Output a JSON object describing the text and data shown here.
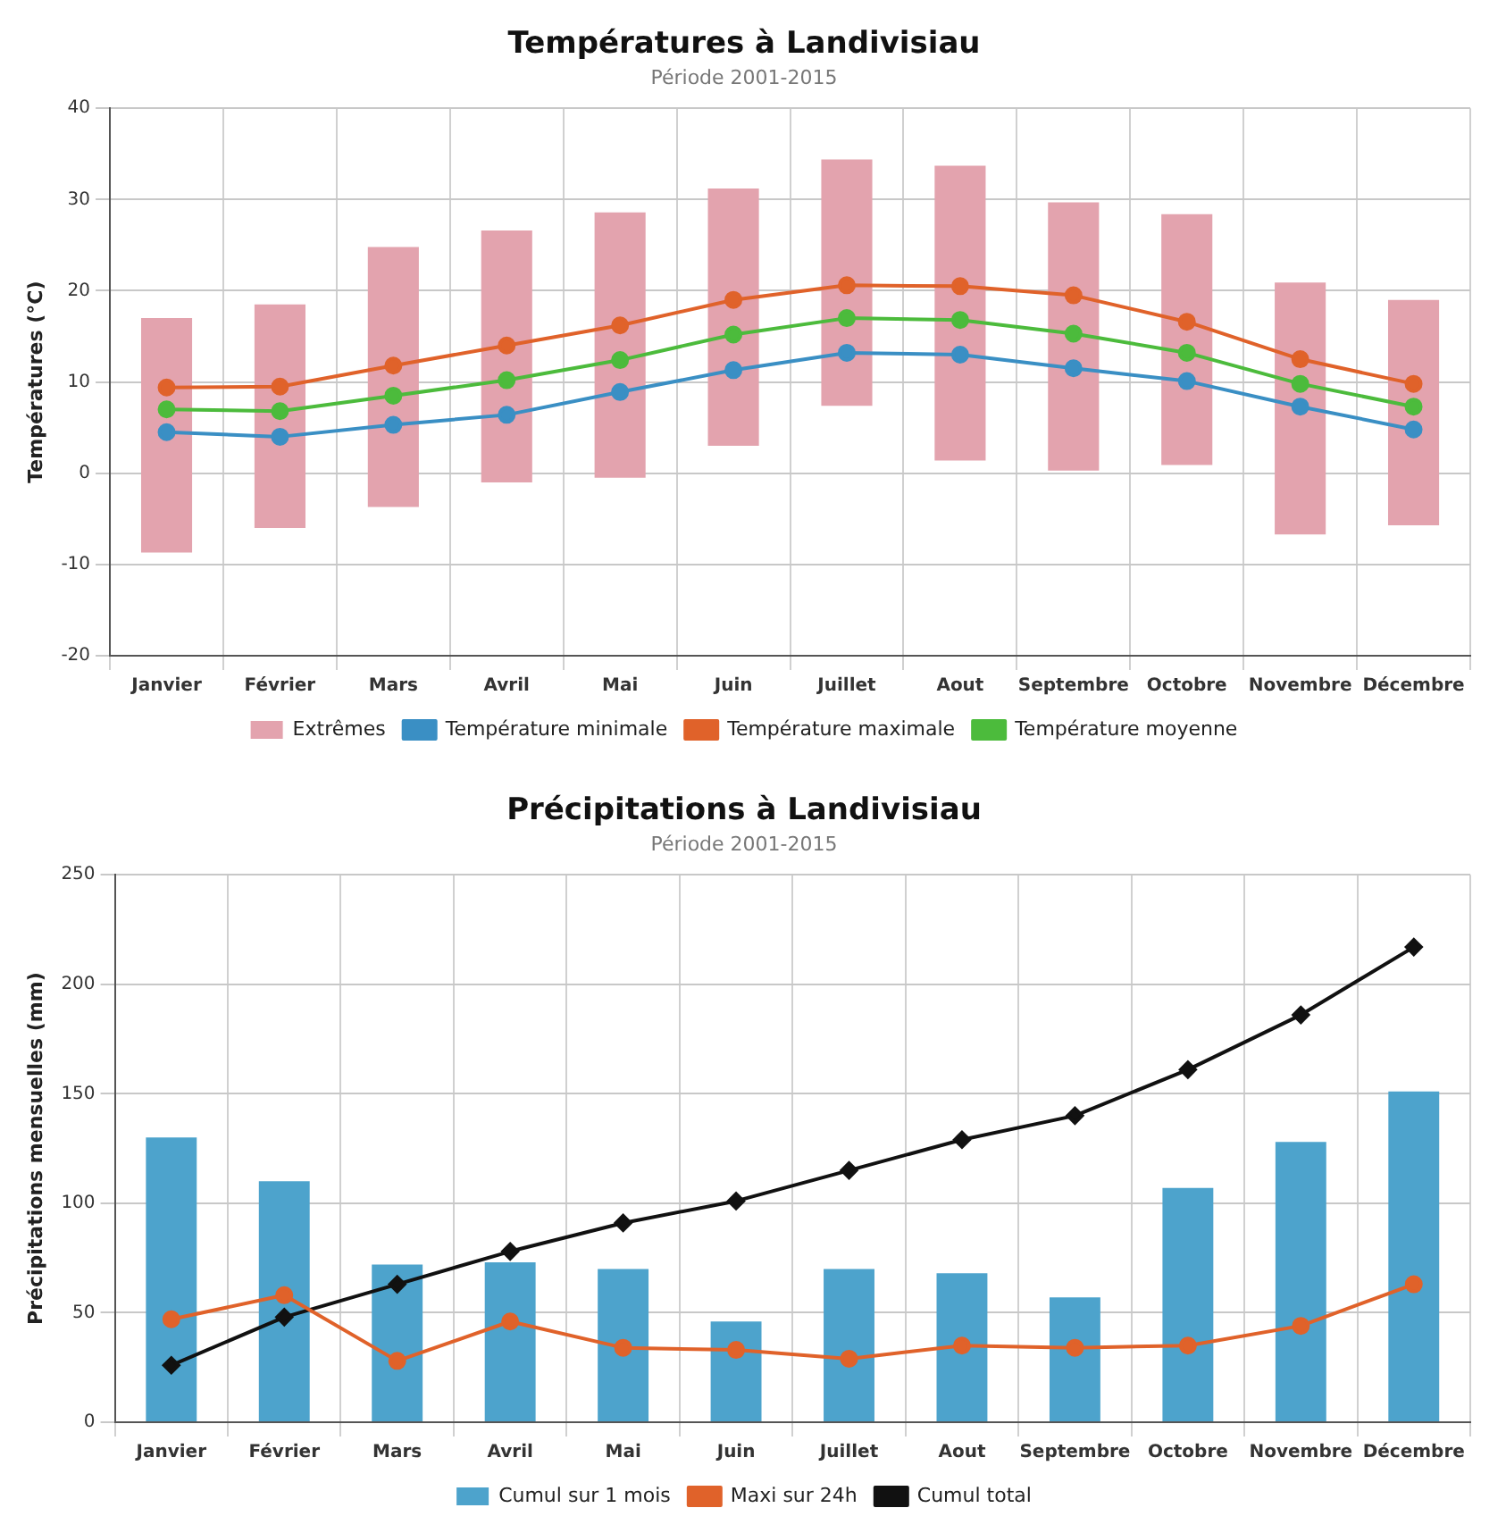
{
  "chart_data": [
    {
      "type": "bar",
      "title": "Températures à Landivisiau",
      "subtitle": "Période 2001-2015",
      "ylabel": "Températures (°C)",
      "categories": [
        "Janvier",
        "Février",
        "Mars",
        "Avril",
        "Mai",
        "Juin",
        "Juillet",
        "Aout",
        "Septembre",
        "Octobre",
        "Novembre",
        "Décembre"
      ],
      "ylim": [
        -20,
        40
      ],
      "yticks": [
        -20,
        -10,
        0,
        10,
        20,
        30,
        40
      ],
      "grid": true,
      "legend": "bottom",
      "marker": "circle",
      "series": [
        {
          "name": "Extrêmes",
          "color": "#e3a3ae",
          "base": [
            -8.7,
            -6,
            -3.7,
            -1,
            -0.5,
            3,
            7.4,
            1.4,
            0.3,
            0.9,
            -6.7,
            -5.7
          ],
          "values": [
            25.7,
            24.5,
            28.5,
            27.6,
            29.1,
            28.2,
            27,
            32.3,
            29.4,
            27.5,
            27.6,
            24.7
          ]
        },
        {
          "name": "Température minimale",
          "type": "line",
          "color": "#3a8fc4",
          "values": [
            4.5,
            4,
            5.3,
            6.4,
            8.9,
            11.3,
            13.2,
            13,
            11.5,
            10.1,
            7.3,
            4.8
          ]
        },
        {
          "name": "Température maximale",
          "type": "line",
          "color": "#e0622a",
          "values": [
            9.4,
            9.5,
            11.8,
            14,
            16.2,
            19,
            20.6,
            20.5,
            19.5,
            16.6,
            12.5,
            9.8
          ]
        },
        {
          "name": "Température moyenne",
          "type": "line",
          "color": "#4cbb3c",
          "values": [
            7,
            6.8,
            8.5,
            10.2,
            12.4,
            15.2,
            17,
            16.8,
            15.3,
            13.2,
            9.8,
            7.3
          ]
        }
      ]
    },
    {
      "type": "bar",
      "title": "Précipitations à Landivisiau",
      "subtitle": "Période 2001-2015",
      "ylabel": "Précipitations mensuelles (mm)",
      "categories": [
        "Janvier",
        "Février",
        "Mars",
        "Avril",
        "Mai",
        "Juin",
        "Juillet",
        "Aout",
        "Septembre",
        "Octobre",
        "Novembre",
        "Décembre"
      ],
      "ylim": [
        0,
        250
      ],
      "yticks": [
        0,
        50,
        100,
        150,
        200,
        250
      ],
      "grid": true,
      "legend": "bottom",
      "marker": "circle",
      "series": [
        {
          "name": "Cumul sur 1 mois",
          "color": "#4da3cc",
          "values": [
            130,
            110,
            72,
            73,
            70,
            46,
            70,
            68,
            57,
            107,
            128,
            151
          ]
        },
        {
          "name": "Maxi sur 24h",
          "type": "line",
          "color": "#e0622a",
          "values": [
            47,
            58,
            28,
            46,
            34,
            33,
            29,
            35,
            34,
            35,
            44,
            63
          ]
        },
        {
          "name": "Cumul total",
          "type": "line",
          "color": "#111111",
          "marker": "diamond",
          "values": [
            26,
            48,
            63,
            78,
            91,
            101,
            115,
            129,
            140,
            161,
            186,
            217
          ]
        }
      ]
    }
  ]
}
